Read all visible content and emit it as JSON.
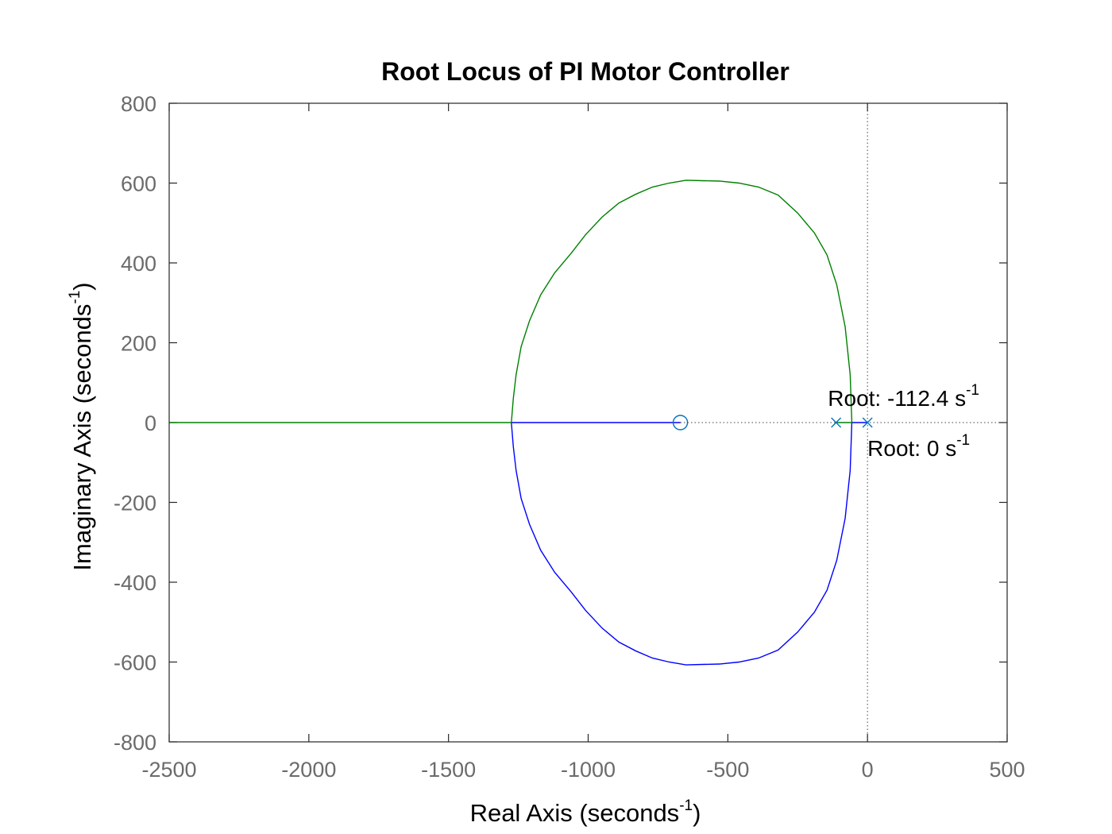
{
  "chart_data": {
    "type": "line",
    "title": "Root Locus of PI Motor Controller",
    "xlabel": {
      "main": "Real Axis (seconds",
      "exp": "-1",
      "close": ")"
    },
    "ylabel": {
      "main": "Imaginary Axis (seconds",
      "exp": "-1",
      "close": ")"
    },
    "xlim": [
      -2500,
      500
    ],
    "ylim": [
      -800,
      800
    ],
    "xticks": [
      -2500,
      -2000,
      -1500,
      -1000,
      -500,
      0,
      500
    ],
    "yticks": [
      -800,
      -600,
      -400,
      -200,
      0,
      200,
      400,
      600,
      800
    ],
    "xtick_labels": [
      "-2500",
      "-2000",
      "-1500",
      "-1000",
      "-500",
      "0",
      "500"
    ],
    "ytick_labels": [
      "-800",
      "-600",
      "-400",
      "-200",
      "0",
      "200",
      "400",
      "600",
      "800"
    ],
    "grid": false,
    "colors": {
      "branch1": "#0000ff",
      "branch2": "#008000",
      "marker": "#0072bd",
      "axis": "#262626"
    },
    "series": [
      {
        "color": "#0000ff",
        "points": [
          [
            0,
            0
          ],
          [
            -56,
            0
          ],
          [
            -62,
            -120
          ],
          [
            -80,
            -240
          ],
          [
            -110,
            -345
          ],
          [
            -145,
            -420
          ],
          [
            -190,
            -475
          ],
          [
            -250,
            -525
          ],
          [
            -320,
            -570
          ],
          [
            -390,
            -590
          ],
          [
            -460,
            -600
          ],
          [
            -530,
            -605
          ],
          [
            -590,
            -606
          ],
          [
            -650,
            -607
          ],
          [
            -710,
            -600
          ],
          [
            -770,
            -590
          ],
          [
            -830,
            -572
          ],
          [
            -890,
            -550
          ],
          [
            -950,
            -515
          ],
          [
            -1010,
            -470
          ],
          [
            -1060,
            -425
          ],
          [
            -1120,
            -375
          ],
          [
            -1170,
            -320
          ],
          [
            -1210,
            -255
          ],
          [
            -1240,
            -190
          ],
          [
            -1258,
            -120
          ],
          [
            -1268,
            -60
          ],
          [
            -1275,
            0
          ],
          [
            -670,
            0
          ]
        ]
      },
      {
        "color": "#008000",
        "points": [
          [
            -112.4,
            0
          ],
          [
            -56,
            0
          ],
          [
            -62,
            120
          ],
          [
            -80,
            240
          ],
          [
            -110,
            345
          ],
          [
            -145,
            420
          ],
          [
            -190,
            475
          ],
          [
            -250,
            525
          ],
          [
            -320,
            570
          ],
          [
            -390,
            590
          ],
          [
            -460,
            600
          ],
          [
            -530,
            605
          ],
          [
            -590,
            606
          ],
          [
            -650,
            607
          ],
          [
            -710,
            600
          ],
          [
            -770,
            590
          ],
          [
            -830,
            572
          ],
          [
            -890,
            550
          ],
          [
            -950,
            515
          ],
          [
            -1010,
            470
          ],
          [
            -1060,
            425
          ],
          [
            -1120,
            375
          ],
          [
            -1170,
            320
          ],
          [
            -1210,
            255
          ],
          [
            -1240,
            190
          ],
          [
            -1258,
            120
          ],
          [
            -1268,
            60
          ],
          [
            -1275,
            0
          ],
          [
            -2500,
            0
          ]
        ]
      }
    ],
    "poles": [
      [
        0,
        0
      ],
      [
        -112.4,
        0
      ]
    ],
    "zeros": [
      [
        -670,
        0
      ]
    ],
    "annotations": [
      {
        "prefix": "Root: -112.4 s",
        "exp": "-1",
        "x": -112.4,
        "y": 0,
        "pos": "above"
      },
      {
        "prefix": "Root: 0 s",
        "exp": "-1",
        "x": 0,
        "y": 0,
        "pos": "below"
      }
    ]
  }
}
